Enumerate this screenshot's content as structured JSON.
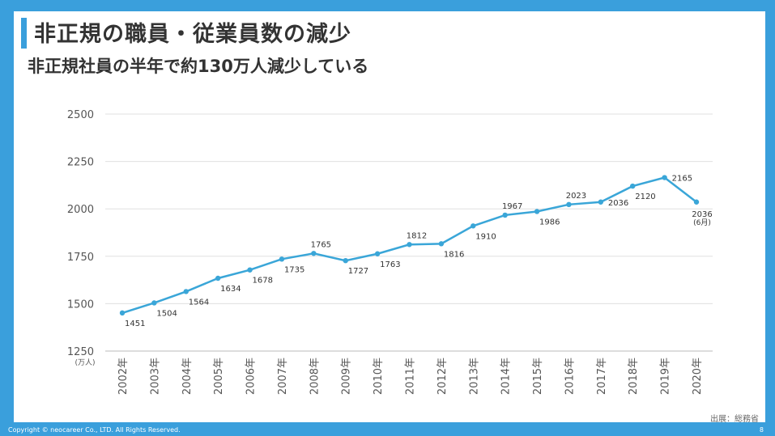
{
  "header": {
    "title": "非正規の職員・従業員数の減少",
    "subtitle": "非正規社員の半年で約130万人減少している"
  },
  "footer": {
    "copyright": "Copyright © neocareer Co., LTD. All Rights Reserved.",
    "page": "8",
    "source": "出展：総務省"
  },
  "colors": {
    "line": "#3aa6d8",
    "frame": "#3a9fdc"
  },
  "chart_data": {
    "type": "line",
    "categories": [
      "2002年",
      "2003年",
      "2004年",
      "2005年",
      "2006年",
      "2007年",
      "2008年",
      "2009年",
      "2010年",
      "2011年",
      "2012年",
      "2013年",
      "2014年",
      "2015年",
      "2016年",
      "2017年",
      "2018年",
      "2019年",
      "2020年"
    ],
    "values": [
      1451,
      1504,
      1564,
      1634,
      1678,
      1735,
      1765,
      1727,
      1763,
      1812,
      1816,
      1910,
      1967,
      1986,
      2023,
      2036,
      2120,
      2165,
      2036
    ],
    "label_positions": [
      "below",
      "below",
      "below",
      "below",
      "below",
      "below",
      "above",
      "below",
      "below",
      "above",
      "below",
      "below",
      "above",
      "below",
      "above",
      "right",
      "below",
      "right",
      "under"
    ],
    "last_note": "(6月)",
    "yticks": [
      1250,
      1500,
      1750,
      2000,
      2250,
      2500
    ],
    "ylim": [
      1250,
      2500
    ],
    "ylabel": "(万人)",
    "grid": true,
    "title": ""
  }
}
